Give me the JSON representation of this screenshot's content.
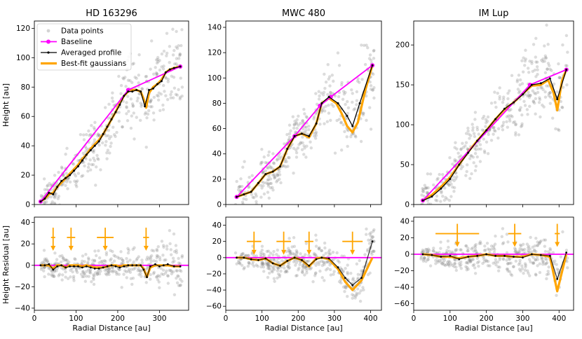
{
  "colors": {
    "baseline": "#ff00ff",
    "averaged": "#000000",
    "gaussian": "#ffa500",
    "points": "#808080",
    "residual_connector": "#555555"
  },
  "figure": {
    "top_ylabel": "Height [au]",
    "bottom_ylabel": "Height Residual [au]",
    "xlabel": "Radial Distance [au]"
  },
  "legend": {
    "location": "upper-left of first panel",
    "entries": [
      {
        "label": "Data points",
        "style": "points"
      },
      {
        "label": "Baseline",
        "style": "baseline"
      },
      {
        "label": "Averaged profile",
        "style": "averaged"
      },
      {
        "label": "Best-fit gaussians",
        "style": "gaussian"
      }
    ]
  },
  "chart_data": [
    {
      "type": "line",
      "title": "HD 163296",
      "xlim": [
        0,
        370
      ],
      "xticks": [
        0,
        100,
        200,
        300
      ],
      "height": {
        "ylim": [
          0,
          125
        ],
        "yticks": [
          0,
          20,
          40,
          60,
          80,
          100,
          120
        ],
        "baseline": {
          "x": [
            15,
            225,
            350
          ],
          "y": [
            2,
            78,
            94
          ]
        },
        "averaged": {
          "x": [
            15,
            25,
            35,
            45,
            55,
            65,
            75,
            85,
            95,
            105,
            115,
            125,
            135,
            145,
            155,
            165,
            175,
            185,
            195,
            205,
            215,
            225,
            235,
            245,
            255,
            265,
            275,
            285,
            295,
            305,
            315,
            325,
            335,
            350
          ],
          "y": [
            2,
            4,
            8,
            7,
            12,
            16,
            18,
            20,
            23,
            26,
            30,
            34,
            37,
            40,
            43,
            48,
            53,
            58,
            63,
            68,
            74,
            77,
            77,
            78,
            77,
            67,
            78,
            79,
            82,
            84,
            90,
            92,
            93,
            94
          ]
        },
        "gaussian": {
          "x": [
            15,
            25,
            35,
            45,
            55,
            65,
            75,
            85,
            95,
            105,
            115,
            125,
            135,
            145,
            155,
            165,
            175,
            185,
            195,
            205,
            215,
            225,
            235,
            245,
            255,
            262,
            268,
            275,
            285,
            295,
            305,
            315,
            325,
            335,
            350
          ],
          "y": [
            2,
            4,
            7,
            8,
            12,
            15,
            18,
            21,
            24,
            27,
            31,
            34,
            38,
            41,
            44,
            48,
            53,
            58,
            63,
            69,
            74,
            77,
            78,
            78,
            77,
            72,
            66,
            76,
            80,
            82,
            85,
            90,
            92,
            93,
            94
          ]
        }
      },
      "residual": {
        "ylim": [
          -42,
          45
        ],
        "yticks": [
          -40,
          -20,
          0,
          20,
          40
        ],
        "x": [
          15,
          25,
          35,
          45,
          55,
          65,
          75,
          85,
          95,
          105,
          115,
          125,
          135,
          145,
          155,
          165,
          175,
          185,
          195,
          205,
          215,
          225,
          235,
          245,
          255,
          262,
          270,
          278,
          290,
          300,
          310,
          320,
          335,
          350
        ],
        "averaged": [
          0,
          0,
          1,
          -4,
          -1,
          0,
          -2,
          -1,
          -1,
          -1,
          -2,
          -1,
          -2,
          -3,
          -3,
          -2,
          -1,
          0,
          -1,
          -2,
          -1,
          0,
          0,
          0,
          0,
          -4,
          -11,
          -1,
          1,
          -1,
          0,
          1,
          -1,
          -1
        ],
        "gaussian": [
          0,
          0,
          0,
          -3,
          0,
          0,
          -2,
          0,
          0,
          0,
          -1,
          0,
          -1,
          -2,
          -2,
          -2,
          -1,
          0,
          0,
          -1,
          0,
          0,
          0,
          0,
          0,
          -3,
          -11,
          -2,
          0,
          0,
          0,
          0,
          -1,
          -1
        ],
        "markers": [
          {
            "x": 45,
            "y": 26,
            "dx": 5
          },
          {
            "x": 88,
            "y": 26,
            "dx": 10
          },
          {
            "x": 170,
            "y": 26,
            "dx": 20
          },
          {
            "x": 268,
            "y": 26,
            "dx": 7
          }
        ]
      },
      "scatter_seed": 7,
      "scatter_xrange": [
        15,
        355
      ]
    },
    {
      "type": "line",
      "title": "MWC 480",
      "xlim": [
        0,
        430
      ],
      "xticks": [
        0,
        100,
        200,
        300,
        400
      ],
      "height": {
        "ylim": [
          0,
          145
        ],
        "yticks": [
          0,
          20,
          40,
          60,
          80,
          100,
          120,
          140
        ],
        "baseline": {
          "x": [
            30,
            190,
            260,
            290,
            405
          ],
          "y": [
            6,
            54,
            78,
            85,
            110
          ]
        },
        "averaged": {
          "x": [
            30,
            50,
            70,
            90,
            110,
            130,
            150,
            170,
            190,
            210,
            230,
            250,
            265,
            285,
            310,
            335,
            350,
            370,
            405
          ],
          "y": [
            6,
            8,
            10,
            17,
            24,
            26,
            30,
            44,
            54,
            56,
            54,
            64,
            80,
            85,
            80,
            70,
            62,
            80,
            110
          ]
        },
        "gaussian": {
          "x": [
            30,
            50,
            70,
            90,
            110,
            130,
            150,
            170,
            190,
            210,
            230,
            250,
            265,
            285,
            305,
            320,
            335,
            350,
            365,
            385,
            405
          ],
          "y": [
            6,
            8,
            10,
            17,
            24,
            26,
            30,
            44,
            54,
            56,
            53,
            64,
            80,
            84,
            80,
            72,
            62,
            57,
            65,
            90,
            110
          ]
        }
      },
      "residual": {
        "ylim": [
          -65,
          50
        ],
        "yticks": [
          -60,
          -40,
          -20,
          0,
          20,
          40
        ],
        "x": [
          30,
          50,
          70,
          90,
          110,
          130,
          150,
          170,
          190,
          210,
          230,
          250,
          265,
          285,
          310,
          330,
          350,
          375,
          405
        ],
        "averaged": [
          0,
          0,
          -2,
          -3,
          -1,
          -7,
          -10,
          -4,
          0,
          -3,
          -10,
          -2,
          0,
          -1,
          -12,
          -25,
          -34,
          -25,
          20
        ],
        "gaussian": [
          0,
          0,
          -2,
          -3,
          -1,
          -7,
          -10,
          -4,
          0,
          -3,
          -11,
          -1,
          0,
          -2,
          -14,
          -30,
          -40,
          -28,
          0
        ],
        "markers": [
          {
            "x": 78,
            "y": 20,
            "dx": 20
          },
          {
            "x": 160,
            "y": 20,
            "dx": 20
          },
          {
            "x": 230,
            "y": 20,
            "dx": 12
          },
          {
            "x": 350,
            "y": 20,
            "dx": 28
          }
        ]
      },
      "scatter_seed": 11,
      "scatter_xrange": [
        25,
        410
      ]
    },
    {
      "type": "line",
      "title": "IM Lup",
      "xlim": [
        0,
        440
      ],
      "xticks": [
        0,
        100,
        200,
        300,
        400
      ],
      "height": {
        "ylim": [
          0,
          230
        ],
        "yticks": [
          0,
          50,
          100,
          150,
          200
        ],
        "baseline": {
          "x": [
            25,
            320,
            420
          ],
          "y": [
            5,
            150,
            169
          ]
        },
        "averaged": {
          "x": [
            25,
            50,
            75,
            100,
            125,
            150,
            175,
            200,
            225,
            250,
            275,
            300,
            325,
            350,
            375,
            395,
            420
          ],
          "y": [
            5,
            10,
            20,
            32,
            50,
            65,
            80,
            93,
            107,
            120,
            128,
            138,
            150,
            152,
            158,
            132,
            169
          ]
        },
        "gaussian": {
          "x": [
            25,
            50,
            75,
            100,
            125,
            150,
            175,
            200,
            225,
            250,
            275,
            300,
            325,
            350,
            370,
            385,
            395,
            408,
            420
          ],
          "y": [
            5,
            12,
            22,
            34,
            50,
            66,
            80,
            93,
            107,
            119,
            128,
            139,
            149,
            150,
            156,
            140,
            118,
            155,
            169
          ]
        }
      },
      "residual": {
        "ylim": [
          -68,
          45
        ],
        "yticks": [
          -60,
          -40,
          -20,
          0,
          20,
          40
        ],
        "x": [
          25,
          50,
          75,
          100,
          125,
          150,
          175,
          200,
          225,
          250,
          275,
          300,
          325,
          350,
          375,
          395,
          420
        ],
        "averaged": [
          0,
          -1,
          -3,
          -2,
          -6,
          -3,
          -2,
          0,
          -2,
          -2,
          -3,
          -4,
          0,
          -1,
          -2,
          -30,
          2
        ],
        "gaussian": [
          0,
          -1,
          -3,
          -3,
          -5,
          -3,
          -2,
          0,
          -2,
          -2,
          -3,
          -3,
          0,
          -1,
          -3,
          -45,
          0
        ],
        "markers": [
          {
            "x": 120,
            "y": 25,
            "dx": 60
          },
          {
            "x": 278,
            "y": 25,
            "dx": 18
          },
          {
            "x": 395,
            "y": 25,
            "dx": 7
          }
        ]
      },
      "scatter_seed": 19,
      "scatter_xrange": [
        20,
        425
      ]
    }
  ]
}
